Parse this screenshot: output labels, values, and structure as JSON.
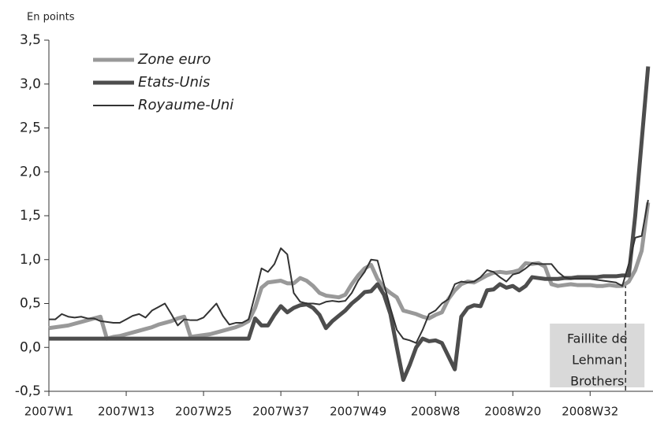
{
  "chart_data": {
    "type": "line",
    "unit_label": "En points",
    "categories": [
      "2007W1",
      null,
      null,
      null,
      null,
      null,
      null,
      null,
      null,
      null,
      null,
      null,
      "2007W13",
      null,
      null,
      null,
      null,
      null,
      null,
      null,
      null,
      null,
      null,
      null,
      "2007W25",
      null,
      null,
      null,
      null,
      null,
      null,
      null,
      null,
      null,
      null,
      null,
      "2007W37",
      null,
      null,
      null,
      null,
      null,
      null,
      null,
      null,
      null,
      null,
      null,
      "2007W49",
      null,
      null,
      null,
      null,
      null,
      null,
      null,
      null,
      null,
      null,
      null,
      "2008W8",
      null,
      null,
      null,
      null,
      null,
      null,
      null,
      null,
      null,
      null,
      null,
      "2008W20",
      null,
      null,
      null,
      null,
      null,
      null,
      null,
      null,
      null,
      null,
      null,
      "2008W32",
      null,
      null,
      null,
      null,
      null,
      null,
      null,
      null,
      null
    ],
    "series": [
      {
        "name": "Zone euro",
        "color": "#999999",
        "width": 5,
        "values": [
          0.22,
          0.23,
          0.24,
          0.25,
          0.27,
          0.29,
          0.31,
          0.33,
          0.35,
          0.1,
          0.12,
          0.13,
          0.15,
          0.17,
          0.19,
          0.21,
          0.23,
          0.26,
          0.28,
          0.3,
          0.33,
          0.35,
          0.12,
          0.13,
          0.14,
          0.15,
          0.17,
          0.19,
          0.21,
          0.23,
          0.26,
          0.3,
          0.45,
          0.68,
          0.74,
          0.75,
          0.76,
          0.73,
          0.73,
          0.79,
          0.76,
          0.7,
          0.62,
          0.59,
          0.58,
          0.57,
          0.6,
          0.72,
          0.82,
          0.9,
          0.94,
          0.78,
          0.68,
          0.62,
          0.57,
          0.42,
          0.4,
          0.38,
          0.35,
          0.33,
          0.37,
          0.4,
          0.55,
          0.65,
          0.72,
          0.75,
          0.74,
          0.78,
          0.82,
          0.85,
          0.86,
          0.85,
          0.86,
          0.88,
          0.96,
          0.95,
          0.96,
          0.92,
          0.72,
          0.7,
          0.71,
          0.72,
          0.71,
          0.71,
          0.71,
          0.7,
          0.7,
          0.71,
          0.7,
          0.7,
          0.75,
          0.88,
          1.1,
          1.65
        ]
      },
      {
        "name": "Etats-Unis",
        "color": "#4d4d4d",
        "width": 5,
        "values": [
          0.1,
          0.1,
          0.1,
          0.1,
          0.1,
          0.1,
          0.1,
          0.1,
          0.1,
          0.1,
          0.1,
          0.1,
          0.1,
          0.1,
          0.1,
          0.1,
          0.1,
          0.1,
          0.1,
          0.1,
          0.1,
          0.1,
          0.1,
          0.1,
          0.1,
          0.1,
          0.1,
          0.1,
          0.1,
          0.1,
          0.1,
          0.1,
          0.33,
          0.25,
          0.25,
          0.37,
          0.47,
          0.4,
          0.45,
          0.48,
          0.49,
          0.45,
          0.37,
          0.22,
          0.3,
          0.36,
          0.42,
          0.5,
          0.56,
          0.63,
          0.64,
          0.72,
          0.6,
          0.38,
          0.0,
          -0.37,
          -0.2,
          0.0,
          0.1,
          0.07,
          0.08,
          0.05,
          -0.1,
          -0.25,
          0.35,
          0.45,
          0.48,
          0.47,
          0.65,
          0.66,
          0.72,
          0.68,
          0.7,
          0.65,
          0.7,
          0.8,
          0.79,
          0.78,
          0.78,
          0.78,
          0.79,
          0.79,
          0.8,
          0.8,
          0.8,
          0.8,
          0.81,
          0.81,
          0.81,
          0.82,
          0.82,
          1.5,
          2.35,
          3.2
        ]
      },
      {
        "name": "Royaume-Uni",
        "color": "#333333",
        "width": 2,
        "values": [
          0.32,
          0.32,
          0.38,
          0.35,
          0.34,
          0.35,
          0.33,
          0.33,
          0.3,
          0.29,
          0.28,
          0.28,
          0.32,
          0.36,
          0.38,
          0.34,
          0.42,
          0.46,
          0.5,
          0.38,
          0.25,
          0.32,
          0.31,
          0.31,
          0.34,
          0.42,
          0.5,
          0.36,
          0.26,
          0.28,
          0.28,
          0.32,
          0.6,
          0.9,
          0.86,
          0.95,
          1.13,
          1.06,
          0.62,
          0.52,
          0.5,
          0.5,
          0.49,
          0.52,
          0.53,
          0.52,
          0.53,
          0.62,
          0.76,
          0.86,
          1.0,
          0.99,
          0.72,
          0.45,
          0.2,
          0.1,
          0.08,
          0.05,
          0.2,
          0.38,
          0.42,
          0.5,
          0.55,
          0.72,
          0.75,
          0.74,
          0.75,
          0.8,
          0.88,
          0.86,
          0.8,
          0.75,
          0.83,
          0.85,
          0.9,
          0.96,
          0.95,
          0.95,
          0.95,
          0.86,
          0.8,
          0.78,
          0.78,
          0.78,
          0.78,
          0.77,
          0.76,
          0.75,
          0.74,
          0.7,
          0.95,
          1.25,
          1.27,
          1.68
        ]
      }
    ],
    "ylim": [
      -0.5,
      3.5
    ],
    "yticks": [
      {
        "value": -0.5,
        "label": "-0,5"
      },
      {
        "value": 0,
        "label": "0,0"
      },
      {
        "value": 0.5,
        "label": "0,5"
      },
      {
        "value": 1,
        "label": "1,0"
      },
      {
        "value": 1.5,
        "label": "1,5"
      },
      {
        "value": 2,
        "label": "2,0"
      },
      {
        "value": 2.5,
        "label": "2,5"
      },
      {
        "value": 3,
        "label": "3,0"
      },
      {
        "value": 3.5,
        "label": "3,5"
      }
    ],
    "annotation": {
      "lines": [
        "Faillite de",
        "Lehman",
        "Brothers"
      ],
      "x": 89.5
    }
  }
}
